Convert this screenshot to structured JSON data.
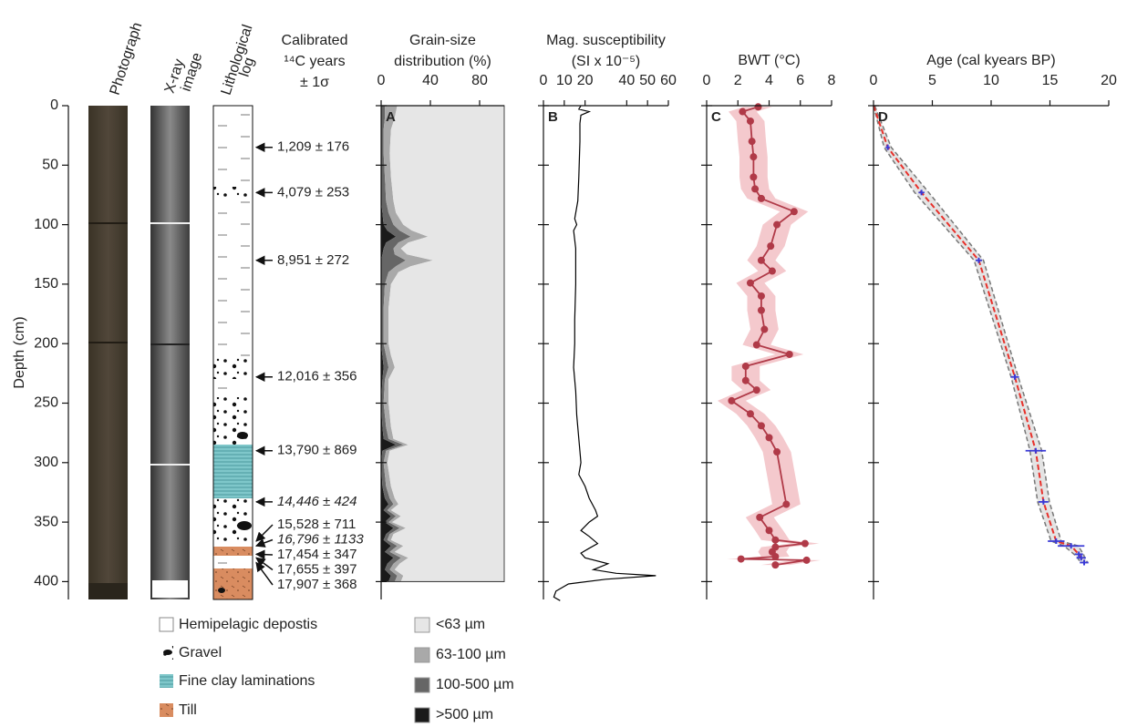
{
  "core": {
    "photograph": "Photograph",
    "xray": [
      "X-ray",
      "image"
    ],
    "litho": [
      "Lithological",
      "log"
    ]
  },
  "dates": {
    "header": [
      "Calibrated",
      "¹⁴C years",
      "± 1σ"
    ],
    "items": [
      {
        "label": "1,209 ± 176",
        "depth": 35
      },
      {
        "label": "4,079 ± 253",
        "depth": 73
      },
      {
        "label": "8,951 ± 272",
        "depth": 130
      },
      {
        "label": "12,016 ± 356",
        "depth": 228
      },
      {
        "label": "13,790 ± 869",
        "depth": 290
      },
      {
        "label": "14,446 ± 424",
        "depth": 333,
        "italic": true
      },
      {
        "label": "15,528 ± 711",
        "depth": 366
      },
      {
        "label": "16,796 ± 1133",
        "depth": 370,
        "italic": true
      },
      {
        "label": "17,454 ± 347",
        "depth": 377
      },
      {
        "label": "17,655 ± 397",
        "depth": 380
      },
      {
        "label": "17,907 ± 368",
        "depth": 384
      }
    ]
  },
  "depth_axis": {
    "label": "Depth (cm)",
    "ylim": [
      0,
      415
    ],
    "yticks": [
      0,
      50,
      100,
      150,
      200,
      250,
      300,
      350,
      400
    ]
  },
  "legend_lithology": [
    "Hemipelagic depostis",
    "Gravel",
    "Fine clay laminations",
    "Till"
  ],
  "chart_data": [
    {
      "type": "area",
      "panel": "A",
      "title": [
        "Grain-size",
        "distribution (%)"
      ],
      "xlim": [
        0,
        100
      ],
      "xticks": [
        0,
        40,
        80
      ],
      "depth": [
        0,
        10,
        20,
        40,
        60,
        80,
        90,
        100,
        105,
        110,
        115,
        120,
        125,
        130,
        135,
        140,
        150,
        170,
        200,
        210,
        220,
        230,
        250,
        270,
        280,
        285,
        290,
        300,
        320,
        330,
        335,
        340,
        345,
        350,
        355,
        360,
        365,
        370,
        375,
        380,
        385,
        390,
        395,
        400
      ],
      "series": [
        {
          "name": "<63 µm",
          "color": "#e6e6e6",
          "values": [
            87,
            89,
            92,
            93,
            92,
            90,
            88,
            82,
            75,
            62,
            78,
            84,
            79,
            58,
            76,
            86,
            92,
            94,
            94,
            92,
            89,
            94,
            94,
            92,
            90,
            78,
            93,
            95,
            92,
            89,
            86,
            92,
            84,
            91,
            80,
            90,
            92,
            82,
            89,
            78,
            85,
            89,
            82,
            84
          ]
        },
        {
          "name": "63-100 µm",
          "color": "#a9a9a9",
          "values": [
            10,
            8,
            6,
            5,
            5,
            6,
            6,
            8,
            10,
            14,
            8,
            6,
            10,
            22,
            12,
            8,
            5,
            4,
            4,
            4,
            5,
            3,
            4,
            4,
            4,
            4,
            3,
            3,
            4,
            4,
            4,
            3,
            4,
            3,
            5,
            3,
            3,
            5,
            4,
            6,
            5,
            4,
            5,
            5
          ]
        },
        {
          "name": "100-500 µm",
          "color": "#666666",
          "values": [
            3,
            3,
            2,
            2,
            3,
            4,
            5,
            8,
            10,
            12,
            10,
            8,
            10,
            20,
            12,
            6,
            3,
            2,
            2,
            3,
            4,
            2,
            2,
            3,
            4,
            6,
            3,
            2,
            3,
            4,
            4,
            3,
            4,
            3,
            5,
            3,
            3,
            5,
            4,
            6,
            5,
            4,
            5,
            5
          ]
        },
        {
          "name": ">500 µm",
          "color": "#1a1a1a",
          "values": [
            0,
            0,
            0,
            0,
            0,
            0,
            1,
            2,
            5,
            12,
            4,
            2,
            1,
            0,
            0,
            0,
            0,
            0,
            0,
            1,
            2,
            1,
            0,
            1,
            2,
            12,
            1,
            0,
            1,
            3,
            6,
            2,
            8,
            3,
            10,
            4,
            2,
            8,
            3,
            10,
            5,
            3,
            8,
            6
          ]
        }
      ]
    },
    {
      "type": "line",
      "panel": "B",
      "title": [
        "Mag. susceptibility",
        "(SI x 10⁻⁵)"
      ],
      "xlim": [
        0,
        60
      ],
      "xticks": [
        0,
        10,
        20,
        40,
        50,
        60
      ],
      "color": "#000000",
      "depth": [
        0,
        3,
        5,
        8,
        15,
        30,
        60,
        80,
        95,
        100,
        105,
        120,
        150,
        180,
        200,
        220,
        240,
        260,
        280,
        300,
        310,
        320,
        330,
        340,
        345,
        350,
        357,
        362,
        368,
        372,
        376,
        380,
        385,
        390,
        393,
        395,
        398,
        402,
        408,
        413,
        416
      ],
      "values": [
        18,
        17,
        22,
        18,
        17.5,
        17.5,
        17,
        16.5,
        15,
        16,
        14.5,
        15.5,
        15.5,
        15,
        15,
        14.5,
        15.5,
        16,
        17,
        18,
        17,
        20,
        22,
        25,
        26,
        22,
        18,
        22,
        26,
        22,
        18,
        20,
        31,
        24,
        35,
        54,
        30,
        12,
        6,
        5,
        8
      ]
    },
    {
      "type": "line",
      "panel": "C",
      "title": [
        "BWT (°C)"
      ],
      "xlim": [
        0,
        8
      ],
      "xticks": [
        0,
        2,
        4,
        6,
        8
      ],
      "color": "#b03a48",
      "band_color": "#f4c9cd",
      "uncertainty": 0.9,
      "markers": true,
      "depth": [
        1,
        5,
        13,
        30,
        43,
        60,
        70,
        78,
        89,
        100,
        118,
        130,
        139,
        149,
        160,
        172,
        188,
        201,
        209,
        219,
        231,
        239,
        248,
        259,
        269,
        279,
        291,
        335,
        346,
        357,
        365,
        368,
        371,
        375,
        379,
        381,
        382,
        386
      ],
      "values": [
        3.3,
        2.3,
        2.8,
        2.9,
        3.0,
        3.0,
        3.1,
        3.5,
        5.6,
        4.5,
        4.1,
        3.5,
        4.2,
        2.8,
        3.5,
        3.5,
        3.7,
        3.2,
        5.3,
        2.5,
        2.5,
        3.2,
        1.6,
        2.8,
        3.5,
        4.0,
        4.5,
        5.1,
        3.4,
        4.0,
        4.4,
        6.3,
        4.4,
        4.2,
        4.4,
        2.2,
        6.4,
        4.4
      ]
    },
    {
      "type": "age-model",
      "panel": "D",
      "title": [
        "Age (cal kyears BP)"
      ],
      "xlim": [
        0,
        20
      ],
      "xticks": [
        0,
        5,
        10,
        15,
        20
      ],
      "color": "#e8302a",
      "band_color": "#e4e4e4",
      "date_color": "#3a3ad6",
      "model": {
        "depth": [
          0,
          35,
          73,
          130,
          228,
          290,
          333,
          366,
          370,
          377,
          380,
          384
        ],
        "age": [
          0,
          1.209,
          4.079,
          8.951,
          12.016,
          13.79,
          14.446,
          15.528,
          16.796,
          17.454,
          17.655,
          17.907
        ],
        "lower": [
          0,
          0.9,
          3.5,
          8.55,
          11.7,
          13.3,
          13.95,
          15.1,
          16.2,
          17.05,
          17.35,
          17.6
        ],
        "upper": [
          0.1,
          1.5,
          4.7,
          9.35,
          12.3,
          14.3,
          14.95,
          15.95,
          17.4,
          17.85,
          17.95,
          18.2
        ]
      },
      "dates": {
        "depth": [
          35,
          73,
          130,
          228,
          290,
          333,
          366,
          370,
          377,
          380,
          384
        ],
        "age": [
          1.209,
          4.079,
          8.951,
          12.016,
          13.79,
          14.446,
          15.528,
          16.796,
          17.454,
          17.655,
          17.907
        ],
        "error": [
          0.176,
          0.253,
          0.272,
          0.356,
          0.869,
          0.424,
          0.711,
          1.133,
          0.347,
          0.397,
          0.368
        ]
      }
    }
  ]
}
